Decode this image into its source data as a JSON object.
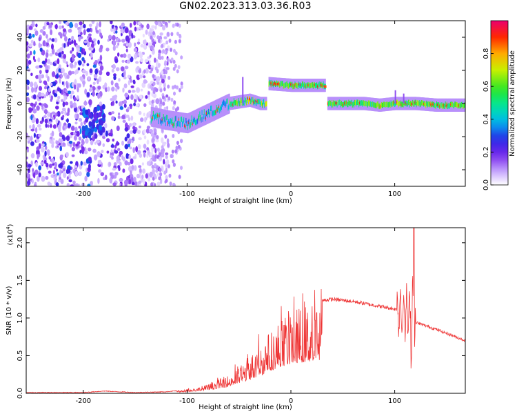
{
  "title": "GN02.2023.313.03.36.R03",
  "chart_data": [
    {
      "type": "heatmap",
      "name": "spectrogram",
      "xlabel": "Height of straight line (km)",
      "ylabel": "Frequency (Hz)",
      "xlim": [
        -255,
        168
      ],
      "ylim": [
        -50,
        50
      ],
      "x_ticks": [
        -200,
        -100,
        0,
        100
      ],
      "y_ticks": [
        -40,
        -20,
        0,
        20,
        40
      ],
      "colorbar": {
        "label": "Normalized spectral amplitude",
        "range": [
          0.0,
          1.0
        ],
        "ticks": [
          "0.0",
          "0.2",
          "0.4",
          "0.6",
          "0.8"
        ],
        "colormap": "rainbow"
      },
      "ridge": {
        "x": [
          -135,
          -120,
          -110,
          -100,
          -90,
          -80,
          -70,
          -60,
          -50,
          -40,
          -30,
          -24,
          -22,
          0,
          20,
          33,
          35,
          50,
          70,
          85,
          100,
          110,
          120,
          140,
          168
        ],
        "y": [
          -8,
          -10,
          -11,
          -12,
          -9,
          -6,
          -3,
          0,
          1,
          2,
          0,
          0,
          12,
          11,
          11,
          11,
          0,
          0,
          0,
          -1,
          0,
          0,
          0,
          -1,
          -1
        ]
      }
    },
    {
      "type": "line",
      "name": "snr",
      "xlabel": "Height of straight line (km)",
      "ylabel": "SNR (10 * v/v)",
      "multiplier": "(x10",
      "multiplier_exp": "4",
      "multiplier_close": ")",
      "xlim": [
        -255,
        168
      ],
      "ylim": [
        0.0,
        2.2
      ],
      "x_ticks": [
        -200,
        -100,
        0,
        100
      ],
      "y_ticks": [
        "0.0",
        "0.5",
        "1.0",
        "1.5",
        "2.0"
      ],
      "color": "#ee3333",
      "envelope": {
        "x": [
          -255,
          -200,
          -180,
          -150,
          -120,
          -100,
          -80,
          -60,
          -45,
          -30,
          -20,
          -10,
          0,
          20,
          40,
          60,
          80,
          100,
          105,
          110,
          118,
          119,
          125,
          140,
          168
        ],
        "y": [
          0.01,
          0.01,
          0.03,
          0.01,
          0.02,
          0.05,
          0.12,
          0.25,
          0.45,
          0.65,
          0.85,
          1.0,
          1.12,
          1.22,
          1.25,
          1.22,
          1.17,
          1.12,
          1.1,
          1.05,
          1.0,
          0.95,
          0.92,
          0.85,
          0.7
        ]
      }
    }
  ]
}
